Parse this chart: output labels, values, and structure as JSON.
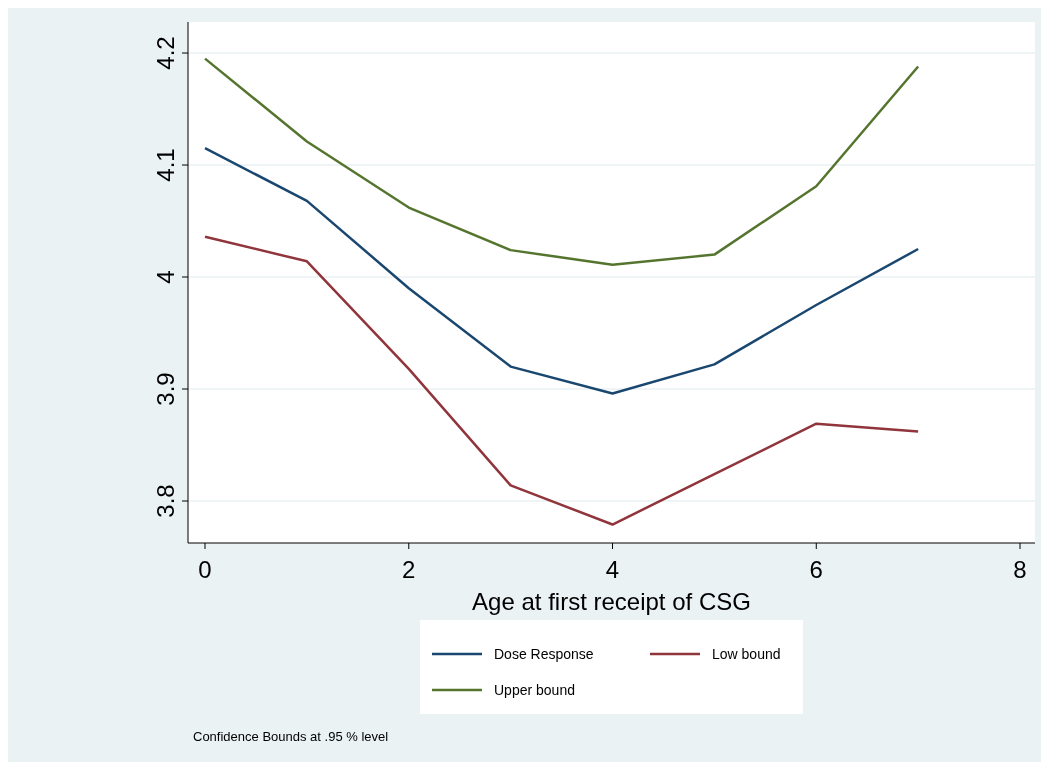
{
  "chart_data": {
    "type": "line",
    "xlabel": "Age at first receipt of CSG",
    "x": [
      0,
      1,
      2,
      3,
      4,
      5,
      6,
      7
    ],
    "series": [
      {
        "name": "Dose Response",
        "color": "#1a476f",
        "values": [
          4.115,
          4.068,
          3.99,
          3.92,
          3.896,
          3.922,
          3.975,
          4.025
        ]
      },
      {
        "name": "Low bound",
        "color": "#90353b",
        "values": [
          4.036,
          4.014,
          3.918,
          3.814,
          3.779,
          3.824,
          3.869,
          3.862
        ]
      },
      {
        "name": "Upper bound",
        "color": "#55752f",
        "values": [
          4.195,
          4.121,
          4.062,
          4.024,
          4.011,
          4.02,
          4.081,
          4.188
        ]
      }
    ],
    "xlim": [
      -0.167,
      8.147
    ],
    "xticks": [
      0,
      2,
      4,
      6,
      8
    ],
    "ylim": [
      3.7625,
      4.2277
    ],
    "yticks": [
      {
        "value": 3.8,
        "label": "3.8"
      },
      {
        "value": 3.9,
        "label": "3.9"
      },
      {
        "value": 4,
        "label": "4"
      },
      {
        "value": 4.1,
        "label": "4.1"
      },
      {
        "value": 4.2,
        "label": "4.2"
      }
    ],
    "grid": "y",
    "legend": "bottom",
    "marker": "none",
    "line_style": "solid",
    "annotations": [
      "Confidence Bounds at .95 % level"
    ]
  }
}
